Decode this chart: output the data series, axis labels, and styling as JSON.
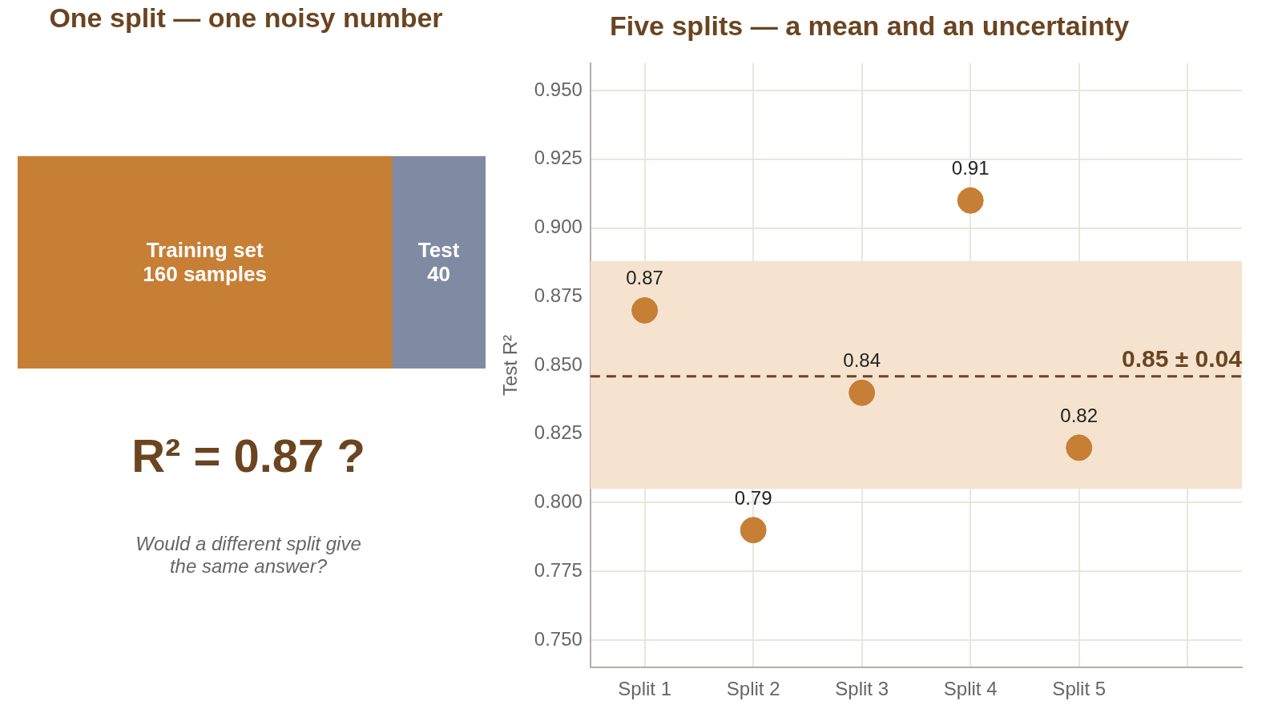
{
  "chart_data": [
    {
      "type": "bar",
      "title": "One split — one noisy number",
      "orientation": "horizontal",
      "stacked": true,
      "categories": [
        null
      ],
      "legend": false,
      "series": [
        {
          "name": "Training set",
          "color": "#c77e35",
          "values": [
            160
          ],
          "value_labels": [
            "160 samples"
          ]
        },
        {
          "name": "Test",
          "color": "#808ba3",
          "values": [
            40
          ],
          "value_labels": [
            "40"
          ]
        }
      ],
      "annotations": [
        "R² = 0.87 ?",
        "Would a different split give the same answer?"
      ]
    },
    {
      "type": "scatter",
      "title": "Five splits — a mean and an uncertainty",
      "ylabel": "Test R²",
      "categories": [
        "Split 1",
        "Split 2",
        "Split 3",
        "Split 4",
        "Split 5",
        null
      ],
      "series": [
        {
          "color": "#c77e35",
          "values": [
            0.87,
            0.79,
            0.84,
            0.91,
            0.82,
            null
          ]
        }
      ],
      "marker": "circle",
      "data_labels": true,
      "grid": true,
      "legend": false,
      "ylim": [
        0.74,
        0.96
      ],
      "yticks": [
        {
          "value": 0.75,
          "label": "0.750"
        },
        {
          "value": 0.775,
          "label": "0.775"
        },
        {
          "value": 0.8,
          "label": "0.800"
        },
        {
          "value": 0.825,
          "label": "0.825"
        },
        {
          "value": 0.85,
          "label": "0.850"
        },
        {
          "value": 0.875,
          "label": "0.875"
        },
        {
          "value": 0.9,
          "label": "0.900"
        },
        {
          "value": 0.925,
          "label": "0.925"
        },
        {
          "value": 0.95,
          "label": "0.950"
        }
      ],
      "bands": [
        {
          "axis": "y",
          "from": 0.805,
          "to": 0.888,
          "color": "#f5e3cf"
        }
      ],
      "ref_lines": [
        {
          "axis": "y",
          "value": 0.846,
          "label": "0.85 ± 0.04",
          "color": "#6b4420",
          "line_style": "dashed"
        }
      ]
    }
  ]
}
